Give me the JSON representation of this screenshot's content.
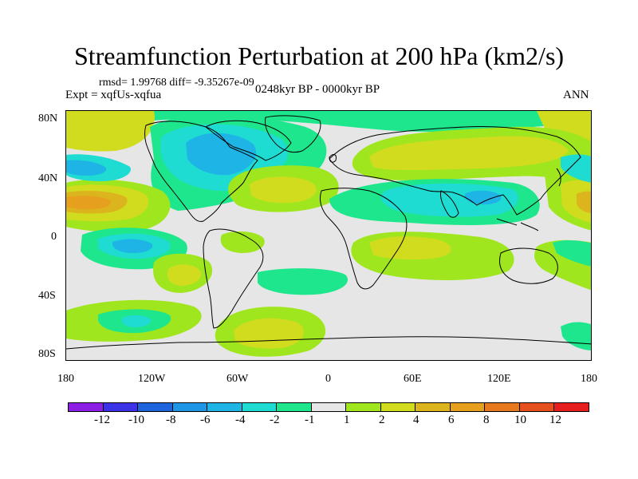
{
  "title": "Streamfunction Perturbation at 200 hPa (km2/s)",
  "stats": "rmsd= 1.99768 diff= -9.35267e-09",
  "expt": "Expt = xqfUs-xqfua",
  "period": "0248kyr BP - 0000kyr BP",
  "season": "ANN",
  "y_axis": {
    "labels": [
      "80N",
      "40N",
      "0",
      "40S",
      "80S"
    ]
  },
  "x_axis": {
    "labels": [
      "180",
      "120W",
      "60W",
      "0",
      "60E",
      "120E",
      "180"
    ]
  },
  "colorbar": {
    "colors": [
      "#8c1ee6",
      "#3c32e6",
      "#1e64dc",
      "#1e96e6",
      "#1eb4e6",
      "#1edcd2",
      "#1ee68c",
      "#e6e6e6",
      "#a0e61e",
      "#d2dc1e",
      "#dcb41e",
      "#e6a01e",
      "#e6781e",
      "#e6501e",
      "#e61e1e"
    ],
    "labels": [
      "-12",
      "-10",
      "-8",
      "-6",
      "-4",
      "-2",
      "-1",
      "1",
      "2",
      "4",
      "6",
      "8",
      "10",
      "12"
    ]
  },
  "map_fields": {
    "colors": {
      "neg4": "#1eb4e6",
      "neg2": "#1edcd2",
      "neg1": "#1ee68c",
      "pos1": "#a0e61e",
      "pos2": "#d2dc1e",
      "pos4": "#dcb41e",
      "pos6": "#e6a01e"
    }
  }
}
